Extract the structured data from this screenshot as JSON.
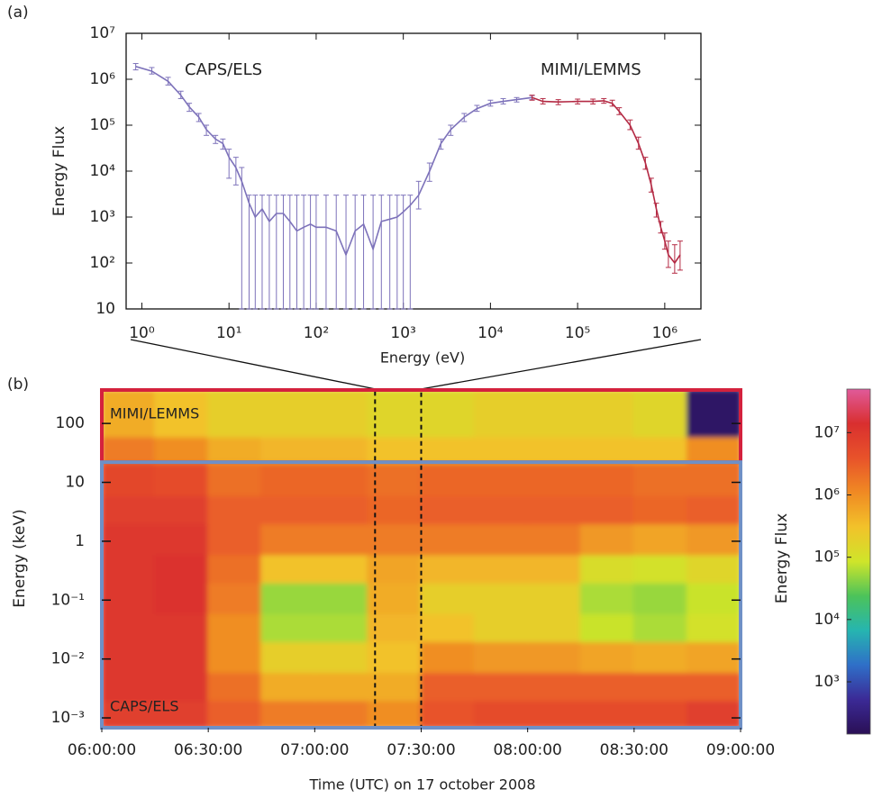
{
  "figure_labels": [
    "(a)",
    "(b)"
  ],
  "chart_data": [
    {
      "type": "line",
      "x_label": "Energy (eV)",
      "y_label": "Energy Flux",
      "xscale": "log",
      "yscale": "log",
      "xlim": [
        0.66,
        2600000
      ],
      "ylim": [
        10,
        10000000
      ],
      "xticks": [
        {
          "value": 1,
          "label": "10⁰"
        },
        {
          "value": 10,
          "label": "10¹"
        },
        {
          "value": 100,
          "label": "10²"
        },
        {
          "value": 1000,
          "label": "10³"
        },
        {
          "value": 10000,
          "label": "10⁴"
        },
        {
          "value": 100000,
          "label": "10⁵"
        },
        {
          "value": 1000000,
          "label": "10⁶"
        }
      ],
      "yticks": [
        10,
        {
          "value": 100,
          "label": "10²"
        },
        {
          "value": 1000,
          "label": "10³"
        },
        {
          "value": 10000,
          "label": "10⁴"
        },
        {
          "value": 100000,
          "label": "10⁵"
        },
        {
          "value": 1000000,
          "label": "10⁶"
        },
        {
          "value": 10000000,
          "label": "10⁷"
        }
      ],
      "series": [
        {
          "name": "CAPS/ELS",
          "color": "#7d72ba",
          "label_color": "#4b3f93",
          "x": [
            0.85,
            1.3,
            2,
            2.8,
            3.5,
            4.5,
            5.5,
            7,
            8.5,
            10,
            12,
            14,
            17,
            20,
            24,
            29,
            35,
            42,
            50,
            60,
            72,
            86,
            100,
            130,
            170,
            220,
            280,
            350,
            450,
            560,
            700,
            850,
            1000,
            1200,
            1500,
            2000,
            2700,
            3500,
            5000,
            7000,
            10000,
            14000,
            20000,
            30000
          ],
          "values": [
            1900000,
            1500000,
            900000,
            450000,
            250000,
            150000,
            80000,
            50000,
            40000,
            20000,
            12000,
            6000,
            2000,
            1000,
            1500,
            800,
            1200,
            1200,
            800,
            500,
            600,
            700,
            600,
            600,
            500,
            150,
            500,
            700,
            200,
            800,
            900,
            1000,
            1300,
            1800,
            3000,
            10000,
            40000,
            80000,
            150000,
            230000,
            300000,
            330000,
            360000,
            400000
          ],
          "err_low": [
            1600000,
            1300000,
            750000,
            380000,
            200000,
            120000,
            60000,
            40000,
            30000,
            7000,
            5000,
            10,
            10,
            10,
            10,
            10,
            10,
            10,
            10,
            10,
            10,
            10,
            10,
            10,
            10,
            10,
            10,
            10,
            10,
            10,
            10,
            10,
            10,
            10,
            1500,
            6000,
            30000,
            60000,
            120000,
            200000,
            260000,
            290000,
            320000,
            360000
          ],
          "err_high": [
            2200000,
            1800000,
            1100000,
            550000,
            300000,
            180000,
            100000,
            60000,
            50000,
            30000,
            20000,
            12000,
            3000,
            3000,
            3000,
            3000,
            3000,
            3000,
            3000,
            3000,
            3000,
            3000,
            3000,
            3000,
            3000,
            3000,
            3000,
            3000,
            3000,
            3000,
            3000,
            3000,
            3000,
            3000,
            6000,
            15000,
            50000,
            100000,
            180000,
            270000,
            350000,
            380000,
            400000,
            440000
          ]
        },
        {
          "name": "MIMI/LEMMS",
          "color": "#b42a44",
          "label_color": "#b01f3c",
          "x": [
            30000,
            40000,
            60000,
            100000,
            150000,
            200000,
            250000,
            300000,
            400000,
            500000,
            600000,
            700000,
            800000,
            900000,
            1000000,
            1100000,
            1300000,
            1500000
          ],
          "values": [
            400000,
            330000,
            320000,
            330000,
            330000,
            340000,
            300000,
            200000,
            100000,
            40000,
            15000,
            5000,
            1500,
            600,
            300,
            150,
            100,
            150
          ],
          "err_low": [
            350000,
            290000,
            280000,
            290000,
            290000,
            300000,
            260000,
            170000,
            80000,
            30000,
            11000,
            3500,
            1000,
            450,
            200,
            80,
            60,
            70
          ],
          "err_high": [
            450000,
            380000,
            360000,
            370000,
            370000,
            380000,
            350000,
            240000,
            130000,
            55000,
            20000,
            7000,
            2000,
            800,
            450,
            300,
            250,
            300
          ]
        }
      ]
    },
    {
      "type": "heatmap",
      "x_label": "Time (UTC) on 17 october 2008",
      "y_label": "Energy (keV)",
      "yscale": "log",
      "xlim": [
        "06:00:00",
        "09:00:00"
      ],
      "xticks": [
        "06:00:00",
        "06:30:00",
        "07:00:00",
        "07:30:00",
        "08:00:00",
        "08:30:00",
        "09:00:00"
      ],
      "ylim": [
        0.00068,
        370
      ],
      "yticks": [
        {
          "value": 0.001,
          "label": "10⁻³"
        },
        {
          "value": 0.01,
          "label": "10⁻²"
        },
        {
          "value": 0.1,
          "label": "10⁻¹"
        },
        1,
        10,
        100
      ],
      "x_bins": [
        "06:00:00",
        "06:15:00",
        "06:30:00",
        "06:45:00",
        "07:00:00",
        "07:15:00",
        "07:30:00",
        "07:45:00",
        "08:00:00",
        "08:15:00",
        "08:30:00",
        "08:45:00",
        "09:00:00"
      ],
      "y_bins": [
        0.00068,
        0.002,
        0.006,
        0.02,
        0.06,
        0.2,
        0.6,
        2,
        6,
        22,
        60,
        370
      ],
      "values": [
        [
          8000000,
          8000000,
          3000000,
          1500000,
          1500000,
          1000000,
          4000000,
          5000000,
          5000000,
          5000000,
          5000000,
          8000000
        ],
        [
          10000000,
          10000000,
          2000000,
          500000,
          500000,
          500000,
          3000000,
          3000000,
          3000000,
          3000000,
          3000000,
          3000000
        ],
        [
          10000000,
          10000000,
          1000000,
          200000,
          200000,
          300000,
          1000000,
          800000,
          800000,
          600000,
          500000,
          600000
        ],
        [
          10000000,
          10000000,
          1000000,
          60000,
          60000,
          400000,
          300000,
          200000,
          200000,
          80000,
          60000,
          100000
        ],
        [
          10000000,
          12000000,
          1500000,
          50000,
          50000,
          500000,
          200000,
          200000,
          200000,
          60000,
          50000,
          80000
        ],
        [
          10000000,
          12000000,
          2000000,
          300000,
          300000,
          600000,
          400000,
          400000,
          400000,
          120000,
          100000,
          150000
        ],
        [
          10000000,
          10000000,
          3000000,
          1500000,
          1500000,
          1500000,
          1500000,
          1500000,
          1500000,
          800000,
          600000,
          800000
        ],
        [
          8000000,
          8000000,
          3000000,
          3000000,
          3000000,
          2500000,
          3000000,
          3000000,
          3000000,
          3000000,
          2500000,
          3000000
        ],
        [
          6000000,
          5000000,
          2000000,
          2500000,
          2500000,
          2000000,
          2500000,
          2500000,
          2500000,
          2500000,
          2000000,
          2000000
        ],
        [
          1500000,
          1000000,
          500000,
          400000,
          400000,
          300000,
          300000,
          300000,
          300000,
          300000,
          300000,
          1000000
        ],
        [
          500000,
          300000,
          200000,
          200000,
          200000,
          150000,
          150000,
          200000,
          200000,
          200000,
          150000,
          200
        ]
      ],
      "colorbar": {
        "label": "Energy Flux",
        "lim": [
          145,
          50000000
        ],
        "ticks": [
          {
            "value": 1000,
            "label": "10³"
          },
          {
            "value": 10000,
            "label": "10⁴"
          },
          {
            "value": 100000,
            "label": "10⁵"
          },
          {
            "value": 1000000,
            "label": "10⁶"
          },
          {
            "value": 10000000,
            "label": "10⁷"
          }
        ],
        "colormap": [
          "#2a0f55",
          "#3b2a96",
          "#2f6fc8",
          "#26b5b0",
          "#4cc35a",
          "#cfe52a",
          "#f2c22a",
          "#f08a23",
          "#e8532a",
          "#d92f2f",
          "#e05a9a"
        ]
      },
      "regions": [
        {
          "name": "MIMI/LEMMS",
          "color": "#d4213d",
          "label_color": "#c0283f",
          "ylim": [
            22,
            370
          ]
        },
        {
          "name": "CAPS/ELS",
          "color": "#6f90c6",
          "label_color": "#4b3f93",
          "ylim": [
            0.00068,
            22
          ]
        }
      ],
      "highlight": [
        "07:17:00",
        "07:30:00"
      ]
    }
  ]
}
